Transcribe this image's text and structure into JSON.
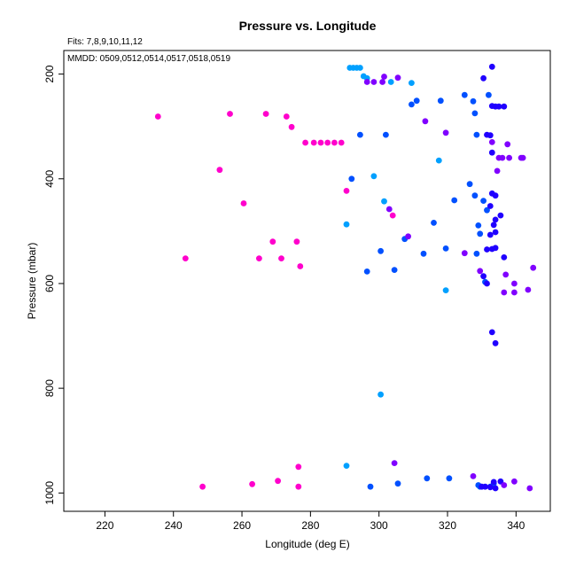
{
  "chart_data": {
    "type": "scatter",
    "title": "Pressure vs. Longitude",
    "subtitle_1": "Fits: 7,8,9,10,11,12",
    "subtitle_2": "MMDD: 0509,0512,0514,0517,0518,0519",
    "xlabel": "Longitude (deg E)",
    "ylabel": "Pressure (mbar)",
    "xlim": [
      208,
      350
    ],
    "ylim": [
      1035,
      155
    ],
    "y_reversed": true,
    "xticks": [
      220,
      240,
      260,
      280,
      300,
      320,
      340
    ],
    "yticks": [
      200,
      400,
      600,
      800,
      1000
    ],
    "grid": false,
    "series": [
      {
        "color": "#ff00cc",
        "points": [
          [
            235.5,
            281
          ],
          [
            256.5,
            276
          ],
          [
            267,
            276
          ],
          [
            273,
            281
          ],
          [
            274.5,
            301
          ],
          [
            278.5,
            331
          ],
          [
            281,
            331
          ],
          [
            283,
            331
          ],
          [
            285,
            331
          ],
          [
            287,
            331
          ],
          [
            289,
            331
          ],
          [
            253.5,
            383
          ],
          [
            260.5,
            447
          ],
          [
            243.5,
            552
          ],
          [
            265,
            552
          ],
          [
            269,
            520
          ],
          [
            271.5,
            552
          ],
          [
            276,
            520
          ],
          [
            277,
            567
          ],
          [
            290.5,
            423
          ],
          [
            304,
            470
          ],
          [
            248.5,
            988
          ],
          [
            263,
            983
          ],
          [
            270.5,
            977
          ],
          [
            276.5,
            988
          ],
          [
            276.5,
            950
          ]
        ]
      },
      {
        "color": "#00a0ff",
        "points": [
          [
            291.5,
            188
          ],
          [
            292.5,
            188
          ],
          [
            293.5,
            188
          ],
          [
            294.5,
            188
          ],
          [
            295.5,
            204
          ],
          [
            296.5,
            208
          ],
          [
            303.5,
            215
          ],
          [
            309.5,
            217
          ],
          [
            317.5,
            365
          ],
          [
            298.5,
            395
          ],
          [
            301.5,
            443
          ],
          [
            290.5,
            487
          ],
          [
            319.5,
            613
          ],
          [
            300.5,
            812
          ],
          [
            290.5,
            948
          ]
        ]
      },
      {
        "color": "#0050ff",
        "points": [
          [
            300.5,
            538
          ],
          [
            296.5,
            577
          ],
          [
            304.5,
            574
          ],
          [
            292,
            400
          ],
          [
            294.5,
            316
          ],
          [
            302,
            316
          ],
          [
            309.5,
            258
          ],
          [
            311,
            251
          ],
          [
            318,
            251
          ],
          [
            325,
            240
          ],
          [
            327.5,
            252
          ],
          [
            328,
            275
          ],
          [
            332,
            240
          ],
          [
            328.5,
            316
          ],
          [
            322,
            441
          ],
          [
            316,
            484
          ],
          [
            319.5,
            533
          ],
          [
            307.5,
            515
          ],
          [
            313,
            543
          ],
          [
            326.5,
            410
          ],
          [
            328,
            432
          ],
          [
            330.5,
            442
          ],
          [
            329,
            489
          ],
          [
            329.5,
            505
          ],
          [
            331.5,
            460
          ],
          [
            328.5,
            543
          ],
          [
            331,
            597
          ],
          [
            297.5,
            988
          ],
          [
            305.5,
            982
          ],
          [
            314,
            972
          ],
          [
            320.5,
            972
          ],
          [
            329,
            985
          ],
          [
            329.5,
            988
          ],
          [
            332.5,
            988
          ],
          [
            333.5,
            982
          ]
        ]
      },
      {
        "color": "#2000ff",
        "points": [
          [
            333,
            186
          ],
          [
            330.5,
            208
          ],
          [
            333,
            261
          ],
          [
            334,
            262
          ],
          [
            335,
            262
          ],
          [
            336.5,
            262
          ],
          [
            331.5,
            316
          ],
          [
            332.5,
            317
          ],
          [
            333,
            350
          ],
          [
            333,
            428
          ],
          [
            334,
            432
          ],
          [
            332.5,
            452
          ],
          [
            334,
            478
          ],
          [
            333.5,
            488
          ],
          [
            335.5,
            470
          ],
          [
            334,
            502
          ],
          [
            332.5,
            507
          ],
          [
            331.5,
            535
          ],
          [
            333,
            534
          ],
          [
            334,
            532
          ],
          [
            330.5,
            586
          ],
          [
            331.5,
            600
          ],
          [
            336.5,
            550
          ],
          [
            333,
            693
          ],
          [
            334,
            714
          ],
          [
            330,
            988
          ],
          [
            331,
            988
          ],
          [
            332.5,
            989
          ],
          [
            334,
            991
          ],
          [
            333.5,
            979
          ],
          [
            335.5,
            978
          ]
        ]
      },
      {
        "color": "#8000ff",
        "points": [
          [
            296.5,
            215
          ],
          [
            298.5,
            215
          ],
          [
            301,
            215
          ],
          [
            301.5,
            205
          ],
          [
            305.5,
            207
          ],
          [
            313.5,
            290
          ],
          [
            319.5,
            312
          ],
          [
            325,
            542
          ],
          [
            327.5,
            968
          ],
          [
            333,
            330
          ],
          [
            337.5,
            334
          ],
          [
            335,
            360
          ],
          [
            336,
            360
          ],
          [
            338,
            360
          ],
          [
            341.5,
            360
          ],
          [
            342,
            360
          ],
          [
            334.5,
            385
          ],
          [
            336.5,
            617
          ],
          [
            337,
            583
          ],
          [
            339.5,
            600
          ],
          [
            339.5,
            617
          ],
          [
            343.5,
            612
          ],
          [
            345,
            570
          ],
          [
            329.5,
            576
          ],
          [
            303,
            458
          ],
          [
            308.5,
            510
          ],
          [
            304.5,
            943
          ],
          [
            336.5,
            985
          ],
          [
            339.5,
            978
          ],
          [
            344,
            991
          ]
        ]
      }
    ]
  }
}
